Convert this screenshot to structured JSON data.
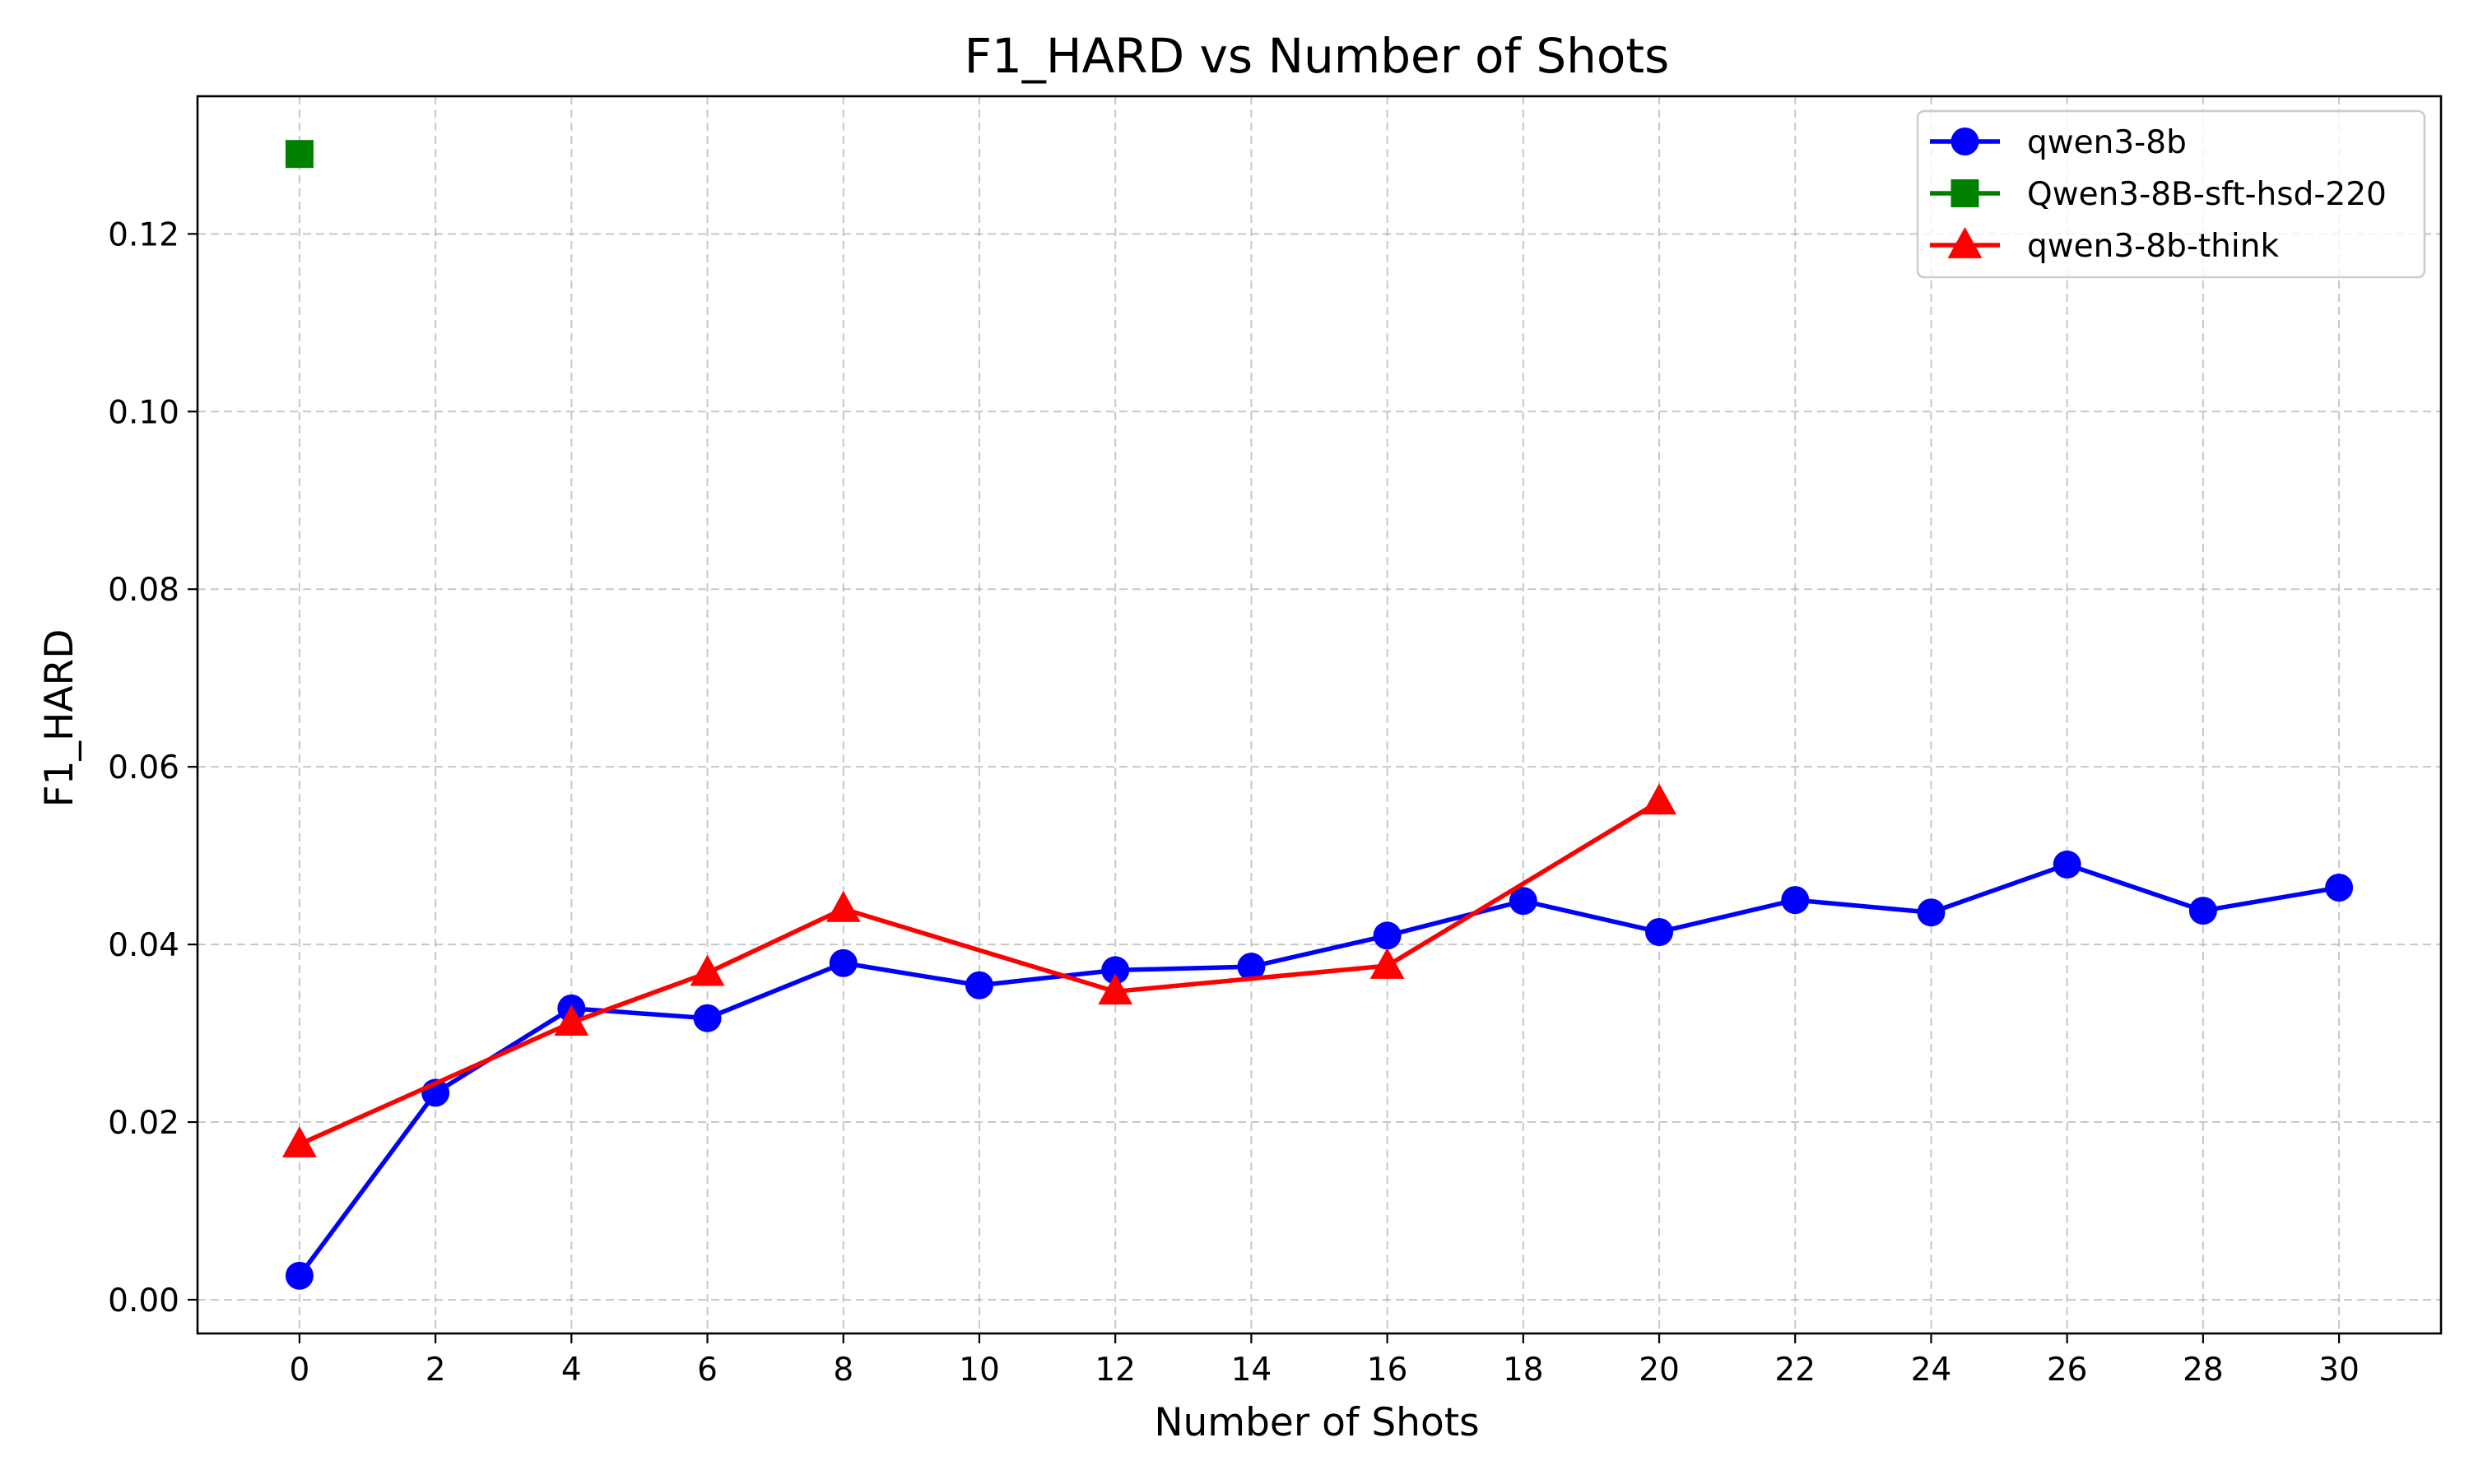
{
  "chart_data": {
    "type": "line",
    "title": "F1_HARD vs Number of Shots",
    "xlabel": "Number of Shots",
    "ylabel": "F1_HARD",
    "xlim": [
      -1.5,
      31.5
    ],
    "ylim": [
      -0.0038,
      0.1355
    ],
    "xticks": [
      0,
      2,
      4,
      6,
      8,
      10,
      12,
      14,
      16,
      18,
      20,
      22,
      24,
      26,
      28,
      30
    ],
    "yticks": [
      0.0,
      0.02,
      0.04,
      0.06,
      0.08,
      0.1,
      0.12
    ],
    "ytick_labels": [
      "0.00",
      "0.02",
      "0.04",
      "0.06",
      "0.08",
      "0.10",
      "0.12"
    ],
    "grid": true,
    "legend_position": "top-right",
    "series": [
      {
        "name": "qwen3-8b",
        "color": "#0000ff",
        "marker": "circle",
        "x": [
          0,
          2,
          4,
          6,
          8,
          10,
          12,
          14,
          16,
          18,
          20,
          22,
          24,
          26,
          28,
          30
        ],
        "y": [
          0.0027,
          0.0233,
          0.0328,
          0.0317,
          0.0379,
          0.0354,
          0.0371,
          0.0375,
          0.041,
          0.0449,
          0.0414,
          0.045,
          0.0436,
          0.049,
          0.0438,
          0.0464
        ]
      },
      {
        "name": "Qwen3-8B-sft-hsd-220",
        "color": "#008000",
        "marker": "square",
        "x": [
          0
        ],
        "y": [
          0.129
        ]
      },
      {
        "name": "qwen3-8b-think",
        "color": "#ff0000",
        "marker": "triangle",
        "x": [
          0,
          4,
          6,
          8,
          12,
          16,
          20
        ],
        "y": [
          0.0175,
          0.0312,
          0.0368,
          0.044,
          0.0347,
          0.0376,
          0.0561
        ]
      }
    ]
  }
}
